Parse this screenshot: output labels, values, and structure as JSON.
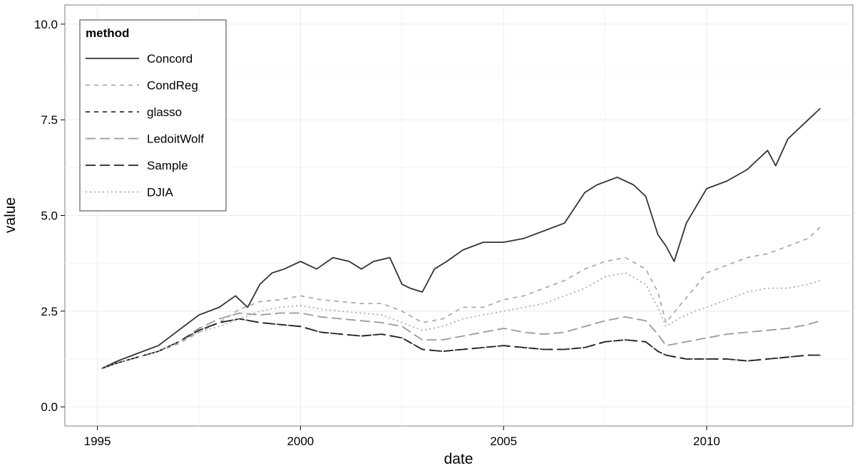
{
  "chart_data": {
    "type": "line",
    "xlabel": "date",
    "ylabel": "value",
    "xlim": [
      1994.2,
      2013.6
    ],
    "ylim": [
      -0.5,
      10.5
    ],
    "xticks": [
      1995,
      2000,
      2005,
      2010
    ],
    "xtick_labels": [
      "1995",
      "2000",
      "2005",
      "2010"
    ],
    "yticks": [
      0,
      2.5,
      5,
      7.5,
      10
    ],
    "ytick_labels": [
      "0.0",
      "2.5",
      "5.0",
      "7.5",
      "10.0"
    ],
    "grid": true,
    "legend": {
      "title": "method",
      "placement": "top-left",
      "entries": [
        "Concord",
        "CondReg",
        "glasso",
        "LedoitWolf",
        "Sample",
        "DJIA"
      ]
    },
    "series": [
      {
        "name": "Concord",
        "color": "#333333",
        "linestyle": "solid",
        "x": [
          1995.1,
          1995.5,
          1996.0,
          1996.5,
          1997.0,
          1997.5,
          1998.0,
          1998.4,
          1998.7,
          1999.0,
          1999.3,
          1999.6,
          2000.0,
          2000.4,
          2000.8,
          2001.2,
          2001.5,
          2001.8,
          2002.2,
          2002.5,
          2002.7,
          2003.0,
          2003.3,
          2003.6,
          2004.0,
          2004.5,
          2005.0,
          2005.5,
          2006.0,
          2006.5,
          2007.0,
          2007.3,
          2007.8,
          2008.2,
          2008.5,
          2008.8,
          2009.0,
          2009.2,
          2009.5,
          2010.0,
          2010.5,
          2011.0,
          2011.5,
          2011.7,
          2012.0,
          2012.5,
          2012.8
        ],
        "y": [
          1.0,
          1.2,
          1.4,
          1.6,
          2.0,
          2.4,
          2.6,
          2.9,
          2.6,
          3.2,
          3.5,
          3.6,
          3.8,
          3.6,
          3.9,
          3.8,
          3.6,
          3.8,
          3.9,
          3.2,
          3.1,
          3.0,
          3.6,
          3.8,
          4.1,
          4.3,
          4.3,
          4.4,
          4.6,
          4.8,
          5.6,
          5.8,
          6.0,
          5.8,
          5.5,
          4.5,
          4.2,
          3.8,
          4.8,
          5.7,
          5.9,
          6.2,
          6.7,
          6.3,
          7.0,
          7.5,
          7.8
        ]
      },
      {
        "name": "CondReg",
        "color": "#aaaaaa",
        "linestyle": "dashed",
        "x": [
          1995.1,
          1995.5,
          1996.0,
          1996.5,
          1997.0,
          1997.5,
          1998.0,
          1998.5,
          1999.0,
          1999.5,
          2000.0,
          2000.5,
          2001.0,
          2001.5,
          2002.0,
          2002.5,
          2003.0,
          2003.5,
          2004.0,
          2004.5,
          2005.0,
          2005.5,
          2006.0,
          2006.5,
          2007.0,
          2007.5,
          2008.0,
          2008.5,
          2008.8,
          2009.0,
          2009.3,
          2009.7,
          2010.0,
          2010.5,
          2011.0,
          2011.5,
          2012.0,
          2012.5,
          2012.8
        ],
        "y": [
          1.0,
          1.15,
          1.3,
          1.45,
          1.65,
          1.95,
          2.2,
          2.55,
          2.75,
          2.8,
          2.9,
          2.8,
          2.75,
          2.7,
          2.7,
          2.5,
          2.2,
          2.3,
          2.6,
          2.6,
          2.8,
          2.9,
          3.1,
          3.3,
          3.6,
          3.8,
          3.9,
          3.6,
          3.0,
          2.2,
          2.6,
          3.1,
          3.5,
          3.7,
          3.9,
          4.0,
          4.2,
          4.4,
          4.7
        ]
      },
      {
        "name": "glasso",
        "color": "#333333",
        "linestyle": "dashed",
        "x": [
          1995.1,
          1995.5,
          1996.0,
          1996.5,
          1997.0,
          1997.5,
          1998.0,
          1998.5,
          1999.0,
          1999.5,
          2000.0,
          2000.5,
          2001.0,
          2001.5,
          2002.0,
          2002.5,
          2003.0,
          2003.5,
          2004.0,
          2004.5,
          2005.0,
          2005.5,
          2006.0,
          2006.5,
          2007.0,
          2007.5,
          2008.0,
          2008.5,
          2008.8,
          2009.0,
          2009.5,
          2010.0,
          2010.5,
          2011.0,
          2011.5,
          2012.0,
          2012.5,
          2012.8
        ],
        "y": [
          1.0,
          1.15,
          1.3,
          1.45,
          1.7,
          2.0,
          2.2,
          2.3,
          2.2,
          2.15,
          2.1,
          1.95,
          1.9,
          1.85,
          1.9,
          1.8,
          1.5,
          1.45,
          1.5,
          1.55,
          1.6,
          1.55,
          1.5,
          1.5,
          1.55,
          1.7,
          1.75,
          1.7,
          1.45,
          1.35,
          1.25,
          1.25,
          1.25,
          1.2,
          1.25,
          1.3,
          1.35,
          1.35
        ]
      },
      {
        "name": "LedoitWolf",
        "color": "#999999",
        "linestyle": "longdash",
        "x": [
          1995.1,
          1995.5,
          1996.0,
          1996.5,
          1997.0,
          1997.5,
          1998.0,
          1998.5,
          1999.0,
          1999.5,
          2000.0,
          2000.5,
          2001.0,
          2001.5,
          2002.0,
          2002.5,
          2003.0,
          2003.5,
          2004.0,
          2004.5,
          2005.0,
          2005.5,
          2006.0,
          2006.5,
          2007.0,
          2007.5,
          2008.0,
          2008.5,
          2008.8,
          2009.0,
          2009.5,
          2010.0,
          2010.5,
          2011.0,
          2011.5,
          2012.0,
          2012.5,
          2012.8
        ],
        "y": [
          1.0,
          1.15,
          1.3,
          1.45,
          1.7,
          2.05,
          2.3,
          2.45,
          2.4,
          2.45,
          2.45,
          2.35,
          2.3,
          2.25,
          2.2,
          2.1,
          1.75,
          1.75,
          1.85,
          1.95,
          2.05,
          1.95,
          1.9,
          1.95,
          2.1,
          2.25,
          2.35,
          2.25,
          1.9,
          1.6,
          1.7,
          1.8,
          1.9,
          1.95,
          2.0,
          2.05,
          2.15,
          2.25
        ]
      },
      {
        "name": "Sample",
        "color": "#222222",
        "linestyle": "longdash",
        "x": [
          1995.1,
          1995.5,
          1996.0,
          1996.5,
          1997.0,
          1997.5,
          1998.0,
          1998.5,
          1999.0,
          1999.5,
          2000.0,
          2000.5,
          2001.0,
          2001.5,
          2002.0,
          2002.5,
          2003.0,
          2003.5,
          2004.0,
          2004.5,
          2005.0,
          2005.5,
          2006.0,
          2006.5,
          2007.0,
          2007.5,
          2008.0,
          2008.5,
          2008.8,
          2009.0,
          2009.5,
          2010.0,
          2010.5,
          2011.0,
          2011.5,
          2012.0,
          2012.5,
          2012.8
        ],
        "y": [
          1.0,
          1.15,
          1.3,
          1.45,
          1.7,
          2.0,
          2.2,
          2.3,
          2.2,
          2.15,
          2.1,
          1.95,
          1.9,
          1.85,
          1.9,
          1.8,
          1.5,
          1.45,
          1.5,
          1.55,
          1.6,
          1.55,
          1.5,
          1.5,
          1.55,
          1.7,
          1.75,
          1.7,
          1.45,
          1.35,
          1.25,
          1.25,
          1.25,
          1.2,
          1.25,
          1.3,
          1.35,
          1.35
        ]
      },
      {
        "name": "DJIA",
        "color": "#aaaaaa",
        "linestyle": "dotted",
        "x": [
          1995.1,
          1995.5,
          1996.0,
          1996.5,
          1997.0,
          1997.5,
          1998.0,
          1998.5,
          1999.0,
          1999.5,
          2000.0,
          2000.5,
          2001.0,
          2001.5,
          2002.0,
          2002.5,
          2003.0,
          2003.5,
          2004.0,
          2004.5,
          2005.0,
          2005.5,
          2006.0,
          2006.5,
          2007.0,
          2007.5,
          2008.0,
          2008.5,
          2008.8,
          2009.0,
          2009.3,
          2009.7,
          2010.0,
          2010.5,
          2011.0,
          2011.5,
          2012.0,
          2012.5,
          2012.8
        ],
        "y": [
          1.0,
          1.15,
          1.3,
          1.45,
          1.7,
          1.95,
          2.1,
          2.3,
          2.5,
          2.6,
          2.65,
          2.55,
          2.5,
          2.45,
          2.4,
          2.2,
          2.0,
          2.1,
          2.3,
          2.4,
          2.5,
          2.6,
          2.7,
          2.9,
          3.1,
          3.4,
          3.5,
          3.2,
          2.6,
          2.1,
          2.3,
          2.5,
          2.6,
          2.8,
          3.0,
          3.1,
          3.1,
          3.2,
          3.3
        ]
      }
    ]
  }
}
